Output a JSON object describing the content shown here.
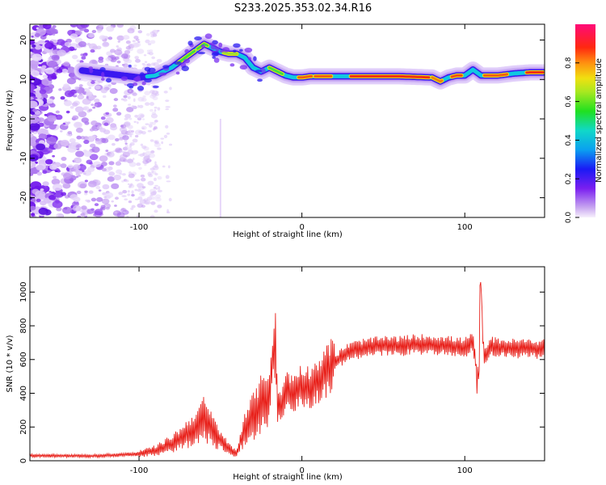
{
  "title": "S233.2025.353.02.34.R16",
  "chart_data": [
    {
      "type": "heatmap",
      "title": "S233.2025.353.02.34.R16",
      "xlabel": "Height of straight line (km)",
      "ylabel": "Frequency (Hz)",
      "xlim": [
        -167,
        149
      ],
      "ylim": [
        -25,
        24
      ],
      "xticks": [
        -100,
        0,
        100
      ],
      "yticks": [
        -20,
        -10,
        0,
        10,
        20
      ],
      "colorbar": {
        "label": "Normalized spectral amplitude",
        "range": [
          0,
          1
        ],
        "ticks": [
          0.0,
          0.2,
          0.4,
          0.6,
          0.8
        ]
      },
      "ridge": {
        "description_points_height_km": [
          -167,
          -130,
          -110,
          -100,
          -90,
          -80,
          -70,
          -60,
          -55,
          -50,
          -45,
          -40,
          -35,
          -30,
          -25,
          -20,
          -15,
          -10,
          -5,
          0,
          5,
          10,
          20,
          40,
          60,
          80,
          85,
          90,
          95,
          100,
          105,
          110,
          120,
          130,
          140,
          149
        ],
        "frequency_hz": [
          14,
          12,
          11,
          10.5,
          11,
          13,
          16,
          19,
          18,
          17,
          16.5,
          16.5,
          15.5,
          13,
          12,
          13,
          12,
          11,
          10.5,
          10.5,
          10.8,
          10.8,
          10.8,
          10.8,
          10.8,
          10.5,
          9.5,
          10.5,
          11,
          11,
          12.5,
          11,
          11,
          11.5,
          11.8,
          11.8
        ]
      }
    },
    {
      "type": "line",
      "xlabel": "Height of straight line (km)",
      "ylabel": "SNR (10 * v/v)",
      "xlim": [
        -167,
        149
      ],
      "ylim": [
        0,
        1150
      ],
      "xticks": [
        -100,
        0,
        100
      ],
      "yticks": [
        0,
        200,
        400,
        600,
        800,
        1000
      ],
      "series": [
        {
          "name": "SNR",
          "color": "#e8201a",
          "x": [
            -167,
            -150,
            -130,
            -110,
            -100,
            -90,
            -80,
            -70,
            -65,
            -60,
            -55,
            -50,
            -45,
            -40,
            -35,
            -30,
            -25,
            -20,
            -18,
            -16,
            -15,
            -12,
            -10,
            -5,
            0,
            5,
            10,
            15,
            20,
            25,
            30,
            40,
            50,
            60,
            70,
            80,
            90,
            100,
            105,
            108,
            110,
            112,
            115,
            120,
            130,
            140,
            149
          ],
          "y": [
            30,
            30,
            28,
            35,
            40,
            60,
            100,
            160,
            200,
            250,
            180,
            120,
            70,
            40,
            200,
            260,
            330,
            400,
            600,
            720,
            300,
            350,
            420,
            400,
            450,
            430,
            480,
            530,
            580,
            620,
            650,
            670,
            680,
            680,
            690,
            690,
            680,
            670,
            700,
            520,
            950,
            600,
            680,
            670,
            665,
            665,
            660
          ]
        }
      ]
    }
  ]
}
